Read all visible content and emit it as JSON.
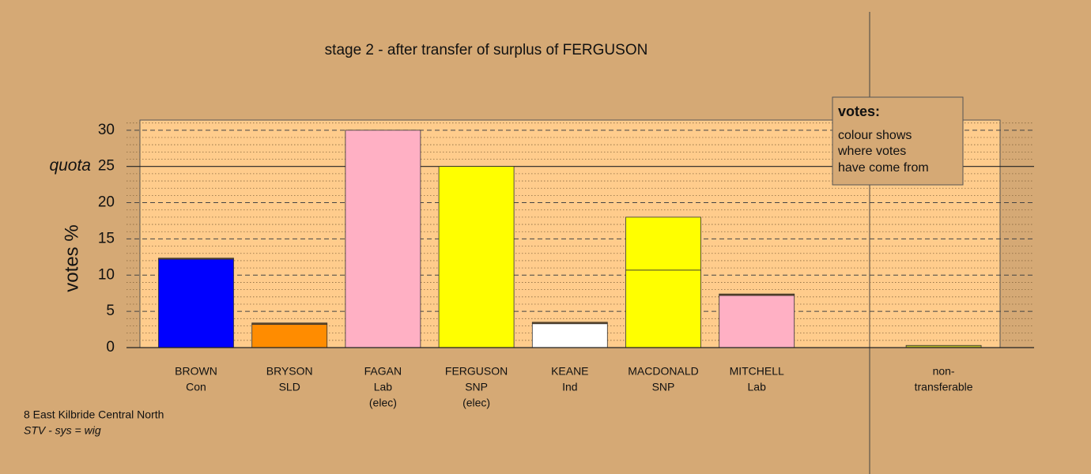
{
  "chart_data": {
    "type": "stacked-bar",
    "title": "stage 2 - after transfer of surplus of FERGUSON",
    "y_label": "votes %",
    "categories": [
      [
        "BROWN",
        "Con"
      ],
      [
        "BRYSON",
        "SLD"
      ],
      [
        "FAGAN",
        "Lab",
        "(elec)"
      ],
      [
        "FERGUSON",
        "SNP",
        "(elec)"
      ],
      [
        "KEANE",
        "Ind"
      ],
      [
        "MACDONALD",
        "SNP"
      ],
      [
        "MITCHELL",
        "Lab"
      ],
      null,
      [
        "non-",
        "transferable"
      ]
    ],
    "series": [
      {
        "colors": [
          "#0000ff",
          "#ff8c00",
          "#ffb0c4",
          "#ffff00",
          "#ffffff",
          "#ffff00",
          "#ffb0c4",
          null,
          "#b8b82a"
        ],
        "values": [
          12.2,
          3.2,
          30,
          25,
          3.3,
          10.7,
          7.2,
          null,
          0
        ]
      },
      {
        "colors": [
          "#6b4a1e",
          "#6b4a1e",
          "#6b4a1e",
          "#6b4a1e",
          "#6b4a1e",
          "#ffff00",
          "#6b4a1e",
          null,
          "#b8b82a"
        ],
        "values": [
          0.15,
          0.2,
          0,
          0,
          0.2,
          7.3,
          0.2,
          null,
          0.3
        ]
      }
    ],
    "ylim": [
      0,
      31.4
    ],
    "yticks": [
      0,
      5,
      10,
      15,
      20,
      25,
      30
    ],
    "minor_yticks": [
      1,
      2,
      3,
      4,
      6,
      7,
      8,
      9,
      11,
      12,
      13,
      14,
      16,
      17,
      18,
      19,
      21,
      22,
      23,
      24,
      26,
      27,
      28,
      29,
      31
    ],
    "quota": {
      "value": 25,
      "label": "quota"
    },
    "grid": true,
    "legend_box": {
      "title": "votes:",
      "lines": [
        "colour shows",
        "where votes",
        "have come from"
      ]
    },
    "footer": [
      "8 East Kilbride Central North",
      "STV - sys = wig"
    ]
  }
}
